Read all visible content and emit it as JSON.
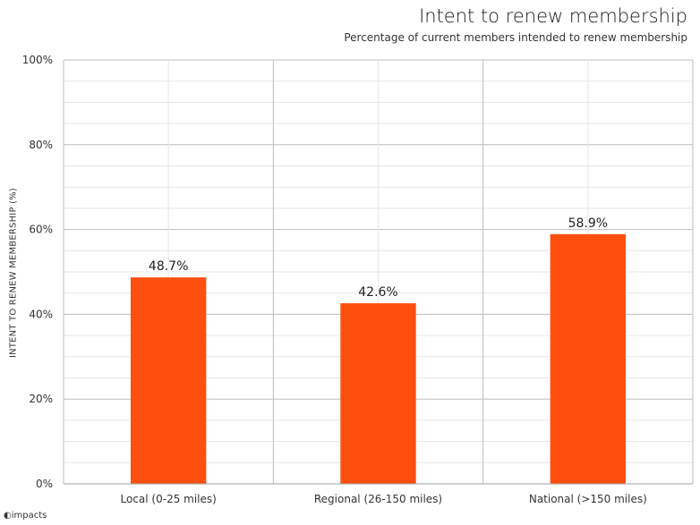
{
  "chart_data": {
    "type": "bar",
    "title": "Intent to renew membership",
    "subtitle": "Percentage of current members intended to renew membership",
    "xlabel": "",
    "ylabel": "INTENT TO RENEW MEMBERSHIP (%)",
    "categories": [
      "Local (0-25 miles)",
      "Regional (26-150 miles)",
      "National (>150 miles)"
    ],
    "values": [
      48.7,
      42.6,
      58.9
    ],
    "data_labels": [
      "48.7%",
      "42.6%",
      "58.9%"
    ],
    "ylim": [
      0,
      100
    ],
    "yticks": [
      0,
      20,
      40,
      60,
      80,
      100
    ],
    "ytick_labels": [
      "0%",
      "20%",
      "40%",
      "60%",
      "80%",
      "100%"
    ],
    "grid": true,
    "legend": "none",
    "bar_color": "#FF4F0F"
  },
  "logo_text": "impacts"
}
